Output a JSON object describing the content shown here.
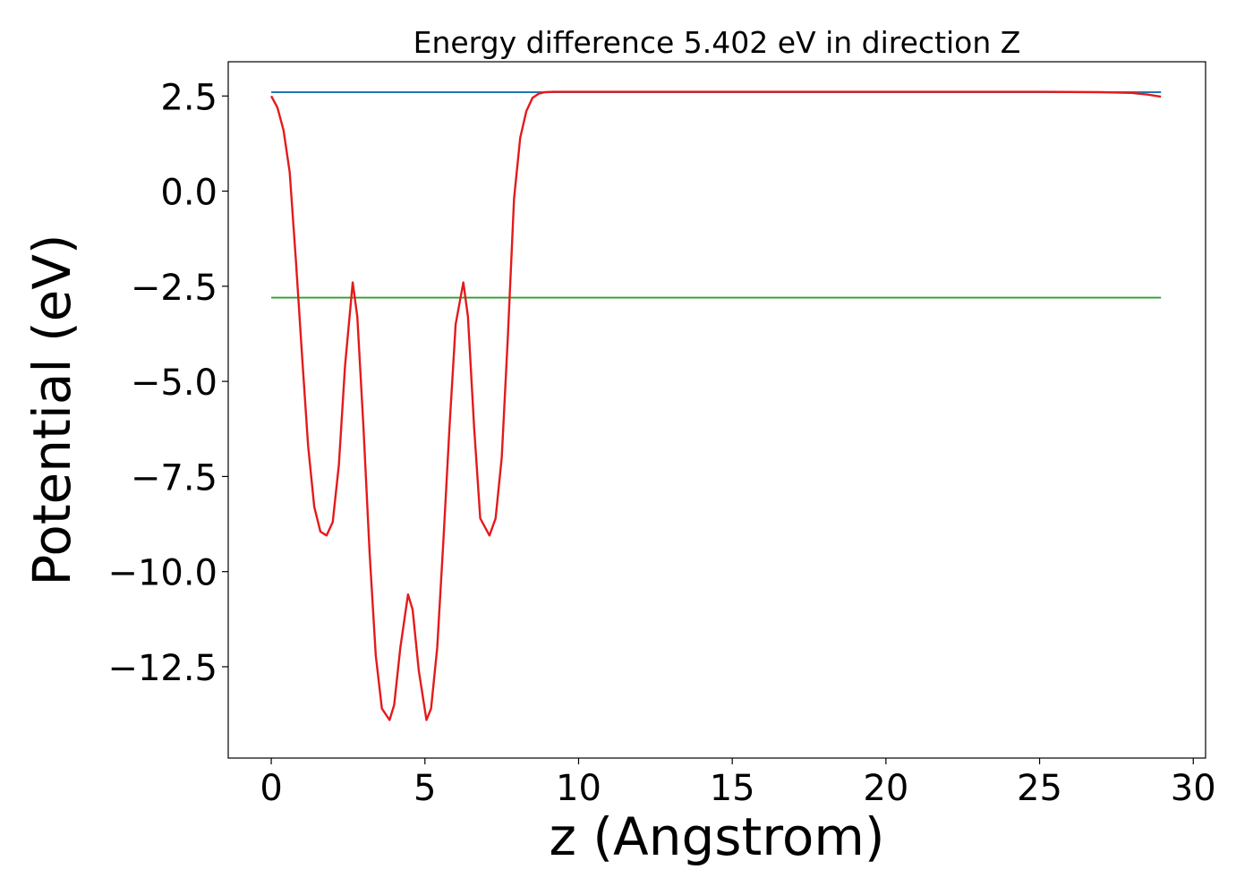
{
  "chart_data": {
    "type": "line",
    "title": "Energy difference 5.402 eV in direction Z",
    "xlabel": "z (Angstrom)",
    "ylabel": "Potential (eV)",
    "xlim": [
      -1.4,
      30.4
    ],
    "ylim": [
      -14.9,
      3.4
    ],
    "x_ticks": [
      0,
      5,
      10,
      15,
      20,
      25,
      30
    ],
    "x_tick_labels": [
      "0",
      "5",
      "10",
      "15",
      "20",
      "25",
      "30"
    ],
    "y_ticks": [
      2.5,
      0.0,
      -2.5,
      -5.0,
      -7.5,
      -10.0,
      -12.5
    ],
    "y_tick_labels": [
      "2.5",
      "0.0",
      "−2.5",
      "−5.0",
      "−7.5",
      "−10.0",
      "−12.5"
    ],
    "grid": false,
    "legend": "none",
    "series": [
      {
        "color": "#1f77b4",
        "x": [
          0,
          28.95
        ],
        "y": [
          2.6,
          2.6
        ]
      },
      {
        "color": "#2ca02c",
        "x": [
          0,
          28.95
        ],
        "y": [
          -2.8,
          -2.8
        ]
      },
      {
        "color": "#e41a1c",
        "x": [
          0,
          0.2,
          0.4,
          0.6,
          0.8,
          1.0,
          1.2,
          1.4,
          1.6,
          1.8,
          2.0,
          2.2,
          2.4,
          2.65,
          2.8,
          3.0,
          3.2,
          3.4,
          3.6,
          3.85,
          4.0,
          4.2,
          4.45,
          4.6,
          4.8,
          5.05,
          5.2,
          5.4,
          5.6,
          5.8,
          6.0,
          6.25,
          6.4,
          6.6,
          6.8,
          7.1,
          7.3,
          7.5,
          7.7,
          7.9,
          8.1,
          8.3,
          8.5,
          8.7,
          8.9,
          9.2,
          9.6,
          10.0,
          11.0,
          15.0,
          20.0,
          25.0,
          27.0,
          28.0,
          28.5,
          28.95
        ],
        "y": [
          2.5,
          2.2,
          1.6,
          0.5,
          -1.8,
          -4.3,
          -6.7,
          -8.3,
          -8.95,
          -9.05,
          -8.7,
          -7.2,
          -4.6,
          -2.4,
          -3.3,
          -6.2,
          -9.5,
          -12.2,
          -13.6,
          -13.9,
          -13.5,
          -12.0,
          -10.6,
          -11.0,
          -12.6,
          -13.9,
          -13.6,
          -12.0,
          -9.2,
          -6.2,
          -3.5,
          -2.4,
          -3.3,
          -6.2,
          -8.6,
          -9.05,
          -8.6,
          -7.0,
          -3.8,
          -0.2,
          1.4,
          2.1,
          2.45,
          2.56,
          2.6,
          2.61,
          2.61,
          2.61,
          2.61,
          2.61,
          2.61,
          2.61,
          2.6,
          2.58,
          2.54,
          2.48
        ]
      }
    ]
  }
}
